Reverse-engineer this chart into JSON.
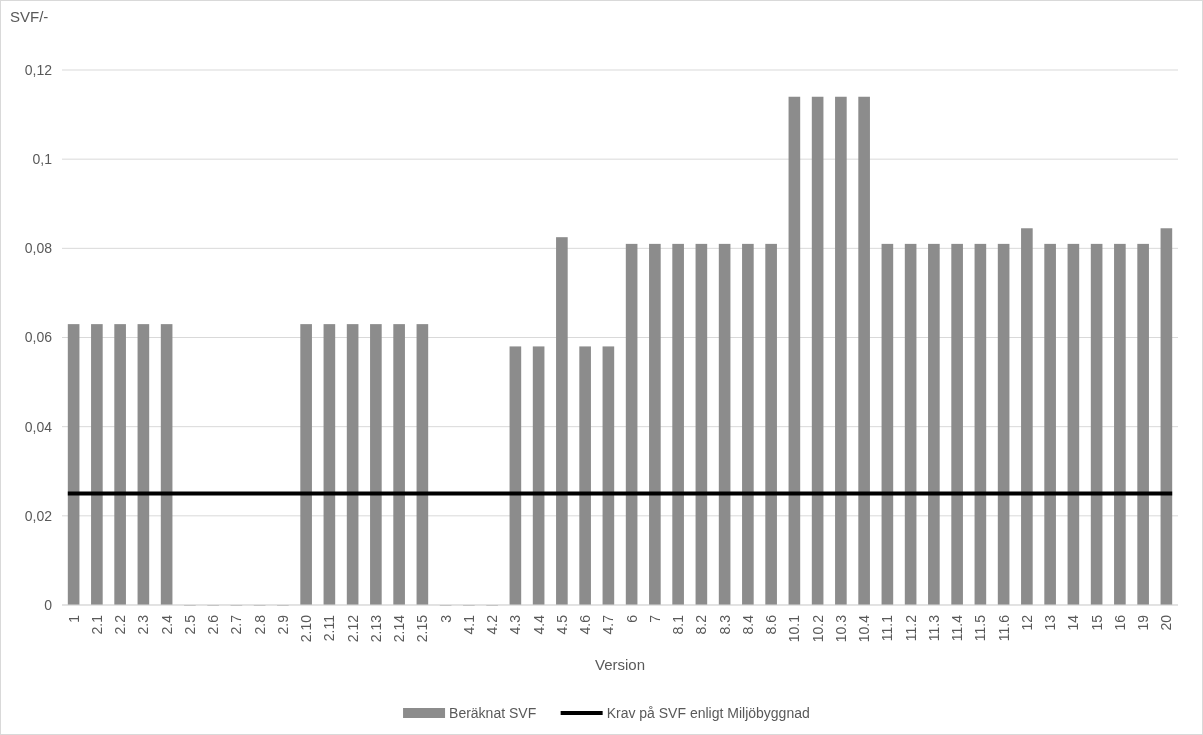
{
  "chart_data": {
    "type": "bar",
    "ylabel": "SVF/-",
    "xlabel": "Version",
    "categories": [
      "1",
      "2.1",
      "2.2",
      "2.3",
      "2.4",
      "2.5",
      "2.6",
      "2.7",
      "2.8",
      "2.9",
      "2.10",
      "2.11",
      "2.12",
      "2.13",
      "2.14",
      "2.15",
      "3",
      "4.1",
      "4.2",
      "4.3",
      "4.4",
      "4.5",
      "4.6",
      "4.7",
      "6",
      "7",
      "8.1",
      "8.2",
      "8.3",
      "8.4",
      "8.6",
      "10.1",
      "10.2",
      "10.3",
      "10.4",
      "11.1",
      "11.2",
      "11.3",
      "11.4",
      "11.5",
      "11.6",
      "12",
      "13",
      "14",
      "15",
      "16",
      "19",
      "20"
    ],
    "series": [
      {
        "name": "Beräknat SVF",
        "color": "#8c8c8c",
        "values": [
          0.063,
          0.063,
          0.063,
          0.063,
          0.063,
          0,
          0,
          0,
          0,
          0,
          0.063,
          0.063,
          0.063,
          0.063,
          0.063,
          0.063,
          0,
          0,
          0,
          0.058,
          0.058,
          0.0825,
          0.058,
          0.058,
          0.081,
          0.081,
          0.081,
          0.081,
          0.081,
          0.081,
          0.081,
          0.114,
          0.114,
          0.114,
          0.114,
          0.081,
          0.081,
          0.081,
          0.081,
          0.081,
          0.081,
          0.0845,
          0.081,
          0.081,
          0.081,
          0.081,
          0.081,
          0.0845
        ]
      }
    ],
    "ref_lines": [
      {
        "axis": "y",
        "value": 0.025,
        "label": "Krav på SVF enligt Miljöbyggnad",
        "color": "#000000"
      }
    ],
    "ylim": [
      0,
      0.12
    ],
    "yticks": [
      0,
      {
        "value": 0.02,
        "label": "0,02"
      },
      {
        "value": 0.04,
        "label": "0,04"
      },
      {
        "value": 0.06,
        "label": "0,06"
      },
      {
        "value": 0.08,
        "label": "0,08"
      },
      {
        "value": 0.1,
        "label": "0,1"
      },
      {
        "value": 0.12,
        "label": "0,12"
      }
    ],
    "grid": "y",
    "legend": "bottom"
  }
}
